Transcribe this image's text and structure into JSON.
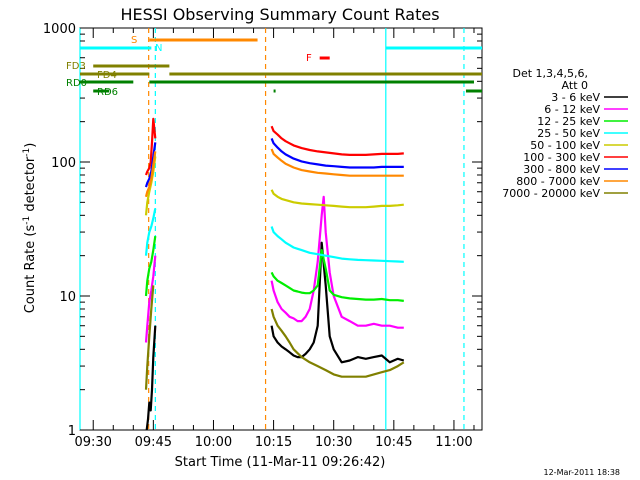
{
  "title": "HESSI Observing Summary Count Rates",
  "xlabel": "Start Time (11-Mar-11 09:26:42)",
  "ylabel_main": "Count Rate (s",
  "ylabel_sup1": "-1",
  "ylabel_mid": " detector",
  "ylabel_sup2": "-1",
  "ylabel_end": ")",
  "footer_date": "12-Mar-2011 18:38",
  "legend_header": [
    "Det 1,3,4,5,6,",
    "Att 0"
  ],
  "colors": {
    "bg": "#ffffff",
    "axes": "#000000",
    "c1": "#000000",
    "c2": "#ff00ff",
    "c3": "#00ee00",
    "c4": "#00ffff",
    "c5": "#cccc00",
    "c6": "#ff0000",
    "c7": "#0000ff",
    "c8": "#ff8800",
    "c9": "#808000",
    "rd": "#008000"
  },
  "flags": [
    {
      "label": "S",
      "color": "#ff8800"
    },
    {
      "label": "N",
      "color": "#00ffff"
    },
    {
      "label": "F",
      "color": "#ff0000"
    },
    {
      "label": "FD3",
      "color": "#808000"
    },
    {
      "label": "FD4",
      "color": "#808000"
    },
    {
      "label": "RD0",
      "color": "#008000"
    },
    {
      "label": "RD6",
      "color": "#008000"
    }
  ],
  "chart_data": {
    "type": "line",
    "title": "HESSI Observing Summary Count Rates",
    "xlabel": "Start Time (11-Mar-11 09:26:42)",
    "ylabel": "Count Rate (s^-1 detector^-1)",
    "y_scale": "log",
    "ylim": [
      1,
      1000
    ],
    "y_ticks": [
      1,
      10,
      100,
      1000
    ],
    "y_tick_labels": [
      "1",
      "10",
      "100",
      "1000"
    ],
    "xlim": [
      "09:26:42",
      "11:07:00"
    ],
    "x_ticks": [
      "09:30",
      "09:45",
      "10:00",
      "10:15",
      "10:30",
      "10:45",
      "11:00"
    ],
    "grid": false,
    "legend_position": "right",
    "vlines": [
      {
        "time": "09:26:42",
        "color": "#00ffff",
        "style": "solid"
      },
      {
        "time": "09:43:50",
        "color": "#ff8800",
        "style": "dashed"
      },
      {
        "time": "09:45:30",
        "color": "#00ffff",
        "style": "dashed"
      },
      {
        "time": "10:13:00",
        "color": "#ff8800",
        "style": "dashed"
      },
      {
        "time": "10:43:00",
        "color": "#00ffff",
        "style": "solid"
      },
      {
        "time": "11:02:30",
        "color": "#00ffff",
        "style": "dashed"
      }
    ],
    "flag_bars": [
      {
        "label": "S",
        "color": "#ff8800",
        "segments": [
          [
            "09:44:00",
            "10:11:00"
          ]
        ]
      },
      {
        "label": "N",
        "color": "#00ffff",
        "segments": [
          [
            "09:26:42",
            "09:44:30"
          ],
          [
            "10:43:00",
            "11:07:00"
          ]
        ]
      },
      {
        "label": "F",
        "color": "#ff0000",
        "segments": [
          [
            "10:26:30",
            "10:29:00"
          ]
        ]
      },
      {
        "label": "FD3",
        "color": "#808000",
        "segments": [
          [
            "09:30:00",
            "09:49:00"
          ]
        ]
      },
      {
        "label": "FD4",
        "color": "#808000",
        "segments": [
          [
            "09:26:42",
            "09:44:00"
          ],
          [
            "09:49:00",
            "11:07:00"
          ]
        ]
      },
      {
        "label": "RD0",
        "color": "#008000",
        "segments": [
          [
            "09:26:42",
            "09:40:00"
          ],
          [
            "09:44:00",
            "11:05:00"
          ]
        ]
      },
      {
        "label": "RD6",
        "color": "#008000",
        "segments": [
          [
            "09:30:00",
            "09:34:00"
          ],
          [
            "10:15:00",
            "10:15:30"
          ],
          [
            "11:03:00",
            "11:07:00"
          ]
        ]
      }
    ],
    "series": [
      {
        "name": "3 - 6 keV",
        "color": "#000000",
        "segments": [
          {
            "x": [
              "09:43:20",
              "09:43:40",
              "09:44:00",
              "09:44:20",
              "09:44:40",
              "09:45:00",
              "09:45:30"
            ],
            "y": [
              1.0,
              1.2,
              1.6,
              1.4,
              2.0,
              3.5,
              6.0
            ]
          },
          {
            "x": [
              "10:14:30",
              "10:15:00",
              "10:16:00",
              "10:17:00",
              "10:18:00",
              "10:19:00",
              "10:20:00",
              "10:21:00",
              "10:22:00",
              "10:23:00",
              "10:24:00",
              "10:25:00",
              "10:26:00",
              "10:27:00",
              "10:28:00",
              "10:29:00",
              "10:30:00",
              "10:32:00",
              "10:34:00",
              "10:36:00",
              "10:38:00",
              "10:40:00",
              "10:42:00",
              "10:44:00",
              "10:46:00",
              "10:47:30"
            ],
            "y": [
              6,
              5,
              4.5,
              4.2,
              4,
              3.8,
              3.6,
              3.5,
              3.5,
              3.7,
              4,
              4.5,
              6,
              25,
              12,
              5,
              4,
              3.2,
              3.3,
              3.5,
              3.4,
              3.5,
              3.6,
              3.2,
              3.4,
              3.3
            ]
          }
        ]
      },
      {
        "name": "6 - 12 keV",
        "color": "#ff00ff",
        "segments": [
          {
            "x": [
              "09:43:10",
              "09:43:30",
              "09:44:00",
              "09:44:30",
              "09:45:00",
              "09:45:30"
            ],
            "y": [
              4.5,
              6,
              9,
              11,
              14,
              20
            ]
          },
          {
            "x": [
              "10:14:30",
              "10:15:00",
              "10:16:00",
              "10:17:00",
              "10:18:00",
              "10:19:00",
              "10:20:00",
              "10:21:00",
              "10:22:00",
              "10:23:00",
              "10:24:00",
              "10:25:00",
              "10:26:00",
              "10:27:00",
              "10:27:30",
              "10:28:00",
              "10:29:00",
              "10:30:00",
              "10:32:00",
              "10:34:00",
              "10:36:00",
              "10:38:00",
              "10:40:00",
              "10:42:00",
              "10:44:00",
              "10:46:00",
              "10:47:30"
            ],
            "y": [
              13,
              11,
              9,
              8,
              7.5,
              7,
              6.8,
              6.5,
              6.5,
              7,
              8,
              11,
              18,
              40,
              55,
              30,
              15,
              10,
              7,
              6.5,
              6,
              6,
              6.2,
              6,
              6,
              5.8,
              5.8
            ]
          }
        ]
      },
      {
        "name": "12 - 25 keV",
        "color": "#00ee00",
        "segments": [
          {
            "x": [
              "09:43:10",
              "09:43:30",
              "09:44:00",
              "09:44:30",
              "09:45:00",
              "09:45:30"
            ],
            "y": [
              10,
              13,
              16,
              18,
              22,
              28
            ]
          },
          {
            "x": [
              "10:14:30",
              "10:15:00",
              "10:16:00",
              "10:17:00",
              "10:18:00",
              "10:19:00",
              "10:20:00",
              "10:21:00",
              "10:22:00",
              "10:23:00",
              "10:24:00",
              "10:25:00",
              "10:26:00",
              "10:27:00",
              "10:28:00",
              "10:29:00",
              "10:30:00",
              "10:32:00",
              "10:34:00",
              "10:36:00",
              "10:38:00",
              "10:40:00",
              "10:42:00",
              "10:44:00",
              "10:46:00",
              "10:47:30"
            ],
            "y": [
              15,
              14,
              13,
              12.5,
              12,
              11.5,
              11,
              10.8,
              10.6,
              10.5,
              10.5,
              11,
              12,
              22,
              16,
              11,
              10.2,
              9.8,
              9.6,
              9.5,
              9.4,
              9.4,
              9.5,
              9.3,
              9.3,
              9.2
            ]
          }
        ]
      },
      {
        "name": "25 - 50 keV",
        "color": "#00ffff",
        "segments": [
          {
            "x": [
              "09:43:10",
              "09:43:30",
              "09:44:00",
              "09:44:30",
              "09:45:00",
              "09:45:30"
            ],
            "y": [
              20,
              25,
              30,
              33,
              38,
              45
            ]
          },
          {
            "x": [
              "10:14:30",
              "10:15:00",
              "10:16:00",
              "10:17:00",
              "10:18:00",
              "10:19:00",
              "10:20:00",
              "10:21:00",
              "10:22:00",
              "10:24:00",
              "10:26:00",
              "10:28:00",
              "10:30:00",
              "10:32:00",
              "10:34:00",
              "10:36:00",
              "10:38:00",
              "10:40:00",
              "10:42:00",
              "10:44:00",
              "10:46:00",
              "10:47:30"
            ],
            "y": [
              33,
              30,
              28,
              26.5,
              25,
              24,
              23,
              22.5,
              22,
              21,
              20.5,
              20,
              19.5,
              19,
              18.8,
              18.6,
              18.5,
              18.4,
              18.3,
              18.2,
              18.1,
              18
            ]
          }
        ]
      },
      {
        "name": "50 - 100 keV",
        "color": "#cccc00",
        "segments": [
          {
            "x": [
              "09:43:10",
              "09:43:30",
              "09:44:00",
              "09:44:30",
              "09:45:00",
              "09:45:30"
            ],
            "y": [
              40,
              50,
              60,
              70,
              85,
              110
            ]
          },
          {
            "x": [
              "10:14:30",
              "10:15:00",
              "10:16:00",
              "10:17:00",
              "10:18:00",
              "10:19:00",
              "10:20:00",
              "10:22:00",
              "10:24:00",
              "10:26:00",
              "10:28:00",
              "10:30:00",
              "10:32:00",
              "10:34:00",
              "10:36:00",
              "10:38:00",
              "10:40:00",
              "10:42:00",
              "10:44:00",
              "10:46:00",
              "10:47:30"
            ],
            "y": [
              62,
              58,
              55,
              53,
              52,
              51,
              50,
              49,
              48.5,
              48,
              47.5,
              47,
              46.5,
              46,
              46,
              46,
              46.5,
              47,
              47,
              47.5,
              48
            ]
          }
        ]
      },
      {
        "name": "100 - 300 keV",
        "color": "#ff0000",
        "segments": [
          {
            "x": [
              "09:43:10",
              "09:43:30",
              "09:44:00",
              "09:44:20",
              "09:44:40",
              "09:45:00",
              "09:45:30"
            ],
            "y": [
              80,
              85,
              90,
              100,
              140,
              210,
              150
            ]
          },
          {
            "x": [
              "10:14:30",
              "10:15:00",
              "10:16:00",
              "10:17:00",
              "10:18:00",
              "10:19:00",
              "10:20:00",
              "10:22:00",
              "10:24:00",
              "10:26:00",
              "10:28:00",
              "10:30:00",
              "10:32:00",
              "10:34:00",
              "10:36:00",
              "10:38:00",
              "10:40:00",
              "10:42:00",
              "10:44:00",
              "10:46:00",
              "10:47:30"
            ],
            "y": [
              185,
              170,
              160,
              150,
              143,
              138,
              133,
              127,
              123,
              120,
              118,
              116,
              114,
              113,
              113,
              113,
              114,
              115,
              115,
              115,
              116
            ]
          }
        ]
      },
      {
        "name": "300 - 800 keV",
        "color": "#0000ff",
        "segments": [
          {
            "x": [
              "09:43:10",
              "09:43:30",
              "09:44:00",
              "09:44:30",
              "09:45:00",
              "09:45:30"
            ],
            "y": [
              65,
              70,
              75,
              85,
              110,
              140
            ]
          },
          {
            "x": [
              "10:14:30",
              "10:15:00",
              "10:16:00",
              "10:17:00",
              "10:18:00",
              "10:19:00",
              "10:20:00",
              "10:22:00",
              "10:24:00",
              "10:26:00",
              "10:28:00",
              "10:30:00",
              "10:32:00",
              "10:34:00",
              "10:36:00",
              "10:38:00",
              "10:40:00",
              "10:42:00",
              "10:44:00",
              "10:46:00",
              "10:47:30"
            ],
            "y": [
              150,
              138,
              128,
              120,
              114,
              110,
              106,
              101,
              98,
              96,
              94,
              93,
              92,
              91,
              91,
              91,
              91,
              92,
              92,
              92,
              92
            ]
          }
        ]
      },
      {
        "name": "800 - 7000 keV",
        "color": "#ff8800",
        "segments": [
          {
            "x": [
              "09:43:10",
              "09:43:30",
              "09:44:00",
              "09:44:30",
              "09:45:00",
              "09:45:30"
            ],
            "y": [
              55,
              60,
              65,
              75,
              95,
              120
            ]
          },
          {
            "x": [
              "10:14:30",
              "10:15:00",
              "10:16:00",
              "10:17:00",
              "10:18:00",
              "10:19:00",
              "10:20:00",
              "10:22:00",
              "10:24:00",
              "10:26:00",
              "10:28:00",
              "10:30:00",
              "10:32:00",
              "10:34:00",
              "10:36:00",
              "10:38:00",
              "10:40:00",
              "10:42:00",
              "10:44:00",
              "10:46:00",
              "10:47:30"
            ],
            "y": [
              125,
              115,
              108,
              102,
              97,
              94,
              91,
              87,
              85,
              83,
              82,
              81,
              80,
              79,
              79,
              79,
              79,
              79,
              79,
              79,
              79
            ]
          }
        ]
      },
      {
        "name": "7000 - 20000 keV",
        "color": "#808000",
        "segments": [
          {
            "x": [
              "09:43:10",
              "09:43:30",
              "09:44:00",
              "09:44:30",
              "09:45:00"
            ],
            "y": [
              2,
              3,
              5,
              8,
              12
            ]
          },
          {
            "x": [
              "10:14:30",
              "10:15:00",
              "10:16:00",
              "10:17:00",
              "10:18:00",
              "10:19:00",
              "10:20:00",
              "10:22:00",
              "10:24:00",
              "10:26:00",
              "10:28:00",
              "10:30:00",
              "10:32:00",
              "10:34:00",
              "10:36:00",
              "10:38:00",
              "10:40:00",
              "10:42:00",
              "10:44:00",
              "10:46:00",
              "10:47:30"
            ],
            "y": [
              8,
              7,
              6,
              5.5,
              5,
              4.5,
              4,
              3.5,
              3.2,
              3,
              2.8,
              2.6,
              2.5,
              2.5,
              2.5,
              2.5,
              2.6,
              2.7,
              2.8,
              3,
              3.2
            ]
          }
        ]
      }
    ]
  }
}
